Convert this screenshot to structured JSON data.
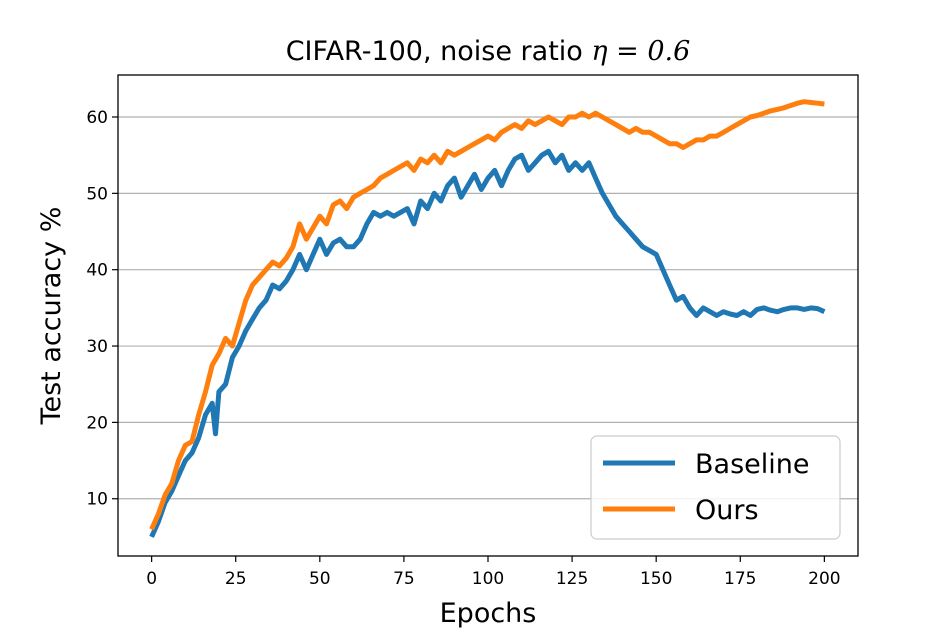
{
  "chart_data": {
    "type": "line",
    "title_text": "CIFAR-100, noise ratio ",
    "title_math": "η = 0.6",
    "xlabel": "Epochs",
    "ylabel": "Test accuracy %",
    "xlim": [
      -10,
      210
    ],
    "ylim": [
      2.5,
      65.5
    ],
    "xticks": [
      0,
      25,
      50,
      75,
      100,
      125,
      150,
      175,
      200
    ],
    "yticks": [
      10,
      20,
      30,
      40,
      50,
      60
    ],
    "grid": "horizontal",
    "legend_position": "lower-right",
    "series": [
      {
        "name": "Baseline",
        "color": "#1f77b4",
        "points": [
          [
            0,
            5
          ],
          [
            2,
            7
          ],
          [
            4,
            9.5
          ],
          [
            6,
            11
          ],
          [
            8,
            13
          ],
          [
            10,
            15
          ],
          [
            12,
            16
          ],
          [
            14,
            18
          ],
          [
            16,
            21
          ],
          [
            18,
            22.5
          ],
          [
            19,
            18.5
          ],
          [
            20,
            24
          ],
          [
            22,
            25
          ],
          [
            24,
            28.5
          ],
          [
            26,
            30
          ],
          [
            28,
            32
          ],
          [
            30,
            33.5
          ],
          [
            32,
            35
          ],
          [
            34,
            36
          ],
          [
            36,
            38
          ],
          [
            38,
            37.5
          ],
          [
            40,
            38.5
          ],
          [
            42,
            40
          ],
          [
            44,
            42
          ],
          [
            46,
            40
          ],
          [
            48,
            42
          ],
          [
            50,
            44
          ],
          [
            52,
            42
          ],
          [
            54,
            43.5
          ],
          [
            56,
            44
          ],
          [
            58,
            43
          ],
          [
            60,
            43
          ],
          [
            62,
            44
          ],
          [
            64,
            46
          ],
          [
            66,
            47.5
          ],
          [
            68,
            47
          ],
          [
            70,
            47.5
          ],
          [
            72,
            47
          ],
          [
            74,
            47.5
          ],
          [
            76,
            48
          ],
          [
            78,
            46
          ],
          [
            80,
            49
          ],
          [
            82,
            48
          ],
          [
            84,
            50
          ],
          [
            86,
            49
          ],
          [
            88,
            51
          ],
          [
            90,
            52
          ],
          [
            92,
            49.5
          ],
          [
            94,
            51
          ],
          [
            96,
            52.5
          ],
          [
            98,
            50.5
          ],
          [
            100,
            52
          ],
          [
            102,
            53
          ],
          [
            104,
            51
          ],
          [
            106,
            53
          ],
          [
            108,
            54.5
          ],
          [
            110,
            55
          ],
          [
            112,
            53
          ],
          [
            114,
            54
          ],
          [
            116,
            55
          ],
          [
            118,
            55.5
          ],
          [
            120,
            54
          ],
          [
            122,
            55
          ],
          [
            124,
            53
          ],
          [
            126,
            54
          ],
          [
            128,
            53
          ],
          [
            130,
            54
          ],
          [
            132,
            52
          ],
          [
            134,
            50
          ],
          [
            136,
            48.5
          ],
          [
            138,
            47
          ],
          [
            140,
            46
          ],
          [
            142,
            45
          ],
          [
            144,
            44
          ],
          [
            146,
            43
          ],
          [
            148,
            42.5
          ],
          [
            150,
            42
          ],
          [
            152,
            40
          ],
          [
            154,
            38
          ],
          [
            156,
            36
          ],
          [
            158,
            36.5
          ],
          [
            160,
            35
          ],
          [
            162,
            34
          ],
          [
            164,
            35
          ],
          [
            166,
            34.5
          ],
          [
            168,
            34
          ],
          [
            170,
            34.5
          ],
          [
            172,
            34.2
          ],
          [
            174,
            34
          ],
          [
            176,
            34.5
          ],
          [
            178,
            34
          ],
          [
            180,
            34.8
          ],
          [
            182,
            35
          ],
          [
            184,
            34.7
          ],
          [
            186,
            34.5
          ],
          [
            188,
            34.8
          ],
          [
            190,
            35
          ],
          [
            192,
            35
          ],
          [
            194,
            34.8
          ],
          [
            196,
            35
          ],
          [
            198,
            34.9
          ],
          [
            200,
            34.5
          ]
        ]
      },
      {
        "name": "Ours",
        "color": "#ff7f0e",
        "points": [
          [
            0,
            6
          ],
          [
            2,
            8
          ],
          [
            4,
            10.5
          ],
          [
            6,
            12
          ],
          [
            8,
            15
          ],
          [
            10,
            17
          ],
          [
            12,
            17.5
          ],
          [
            14,
            21
          ],
          [
            16,
            24
          ],
          [
            18,
            27.5
          ],
          [
            20,
            29
          ],
          [
            22,
            31
          ],
          [
            24,
            30
          ],
          [
            26,
            33
          ],
          [
            28,
            36
          ],
          [
            30,
            38
          ],
          [
            32,
            39
          ],
          [
            34,
            40
          ],
          [
            36,
            41
          ],
          [
            38,
            40.5
          ],
          [
            40,
            41.5
          ],
          [
            42,
            43
          ],
          [
            44,
            46
          ],
          [
            46,
            44
          ],
          [
            48,
            45.5
          ],
          [
            50,
            47
          ],
          [
            52,
            46
          ],
          [
            54,
            48.5
          ],
          [
            56,
            49
          ],
          [
            58,
            48
          ],
          [
            60,
            49.5
          ],
          [
            62,
            50
          ],
          [
            64,
            50.5
          ],
          [
            66,
            51
          ],
          [
            68,
            52
          ],
          [
            70,
            52.5
          ],
          [
            72,
            53
          ],
          [
            74,
            53.5
          ],
          [
            76,
            54
          ],
          [
            78,
            53
          ],
          [
            80,
            54.5
          ],
          [
            82,
            54
          ],
          [
            84,
            55
          ],
          [
            86,
            54
          ],
          [
            88,
            55.5
          ],
          [
            90,
            55
          ],
          [
            92,
            55.5
          ],
          [
            94,
            56
          ],
          [
            96,
            56.5
          ],
          [
            98,
            57
          ],
          [
            100,
            57.5
          ],
          [
            102,
            57
          ],
          [
            104,
            58
          ],
          [
            106,
            58.5
          ],
          [
            108,
            59
          ],
          [
            110,
            58.5
          ],
          [
            112,
            59.5
          ],
          [
            114,
            59
          ],
          [
            116,
            59.5
          ],
          [
            118,
            60
          ],
          [
            120,
            59.5
          ],
          [
            122,
            59
          ],
          [
            124,
            60
          ],
          [
            126,
            60
          ],
          [
            128,
            60.5
          ],
          [
            130,
            60
          ],
          [
            132,
            60.5
          ],
          [
            134,
            60
          ],
          [
            136,
            59.5
          ],
          [
            138,
            59
          ],
          [
            140,
            58.5
          ],
          [
            142,
            58
          ],
          [
            144,
            58.5
          ],
          [
            146,
            58
          ],
          [
            148,
            58
          ],
          [
            150,
            57.5
          ],
          [
            152,
            57
          ],
          [
            154,
            56.5
          ],
          [
            156,
            56.5
          ],
          [
            158,
            56
          ],
          [
            160,
            56.5
          ],
          [
            162,
            57
          ],
          [
            164,
            57
          ],
          [
            166,
            57.5
          ],
          [
            168,
            57.5
          ],
          [
            170,
            58
          ],
          [
            172,
            58.5
          ],
          [
            174,
            59
          ],
          [
            176,
            59.5
          ],
          [
            178,
            60
          ],
          [
            180,
            60.2
          ],
          [
            182,
            60.5
          ],
          [
            184,
            60.8
          ],
          [
            186,
            61
          ],
          [
            188,
            61.2
          ],
          [
            190,
            61.5
          ],
          [
            192,
            61.8
          ],
          [
            194,
            62
          ],
          [
            196,
            61.9
          ],
          [
            198,
            61.8
          ],
          [
            200,
            61.7
          ]
        ]
      }
    ]
  }
}
